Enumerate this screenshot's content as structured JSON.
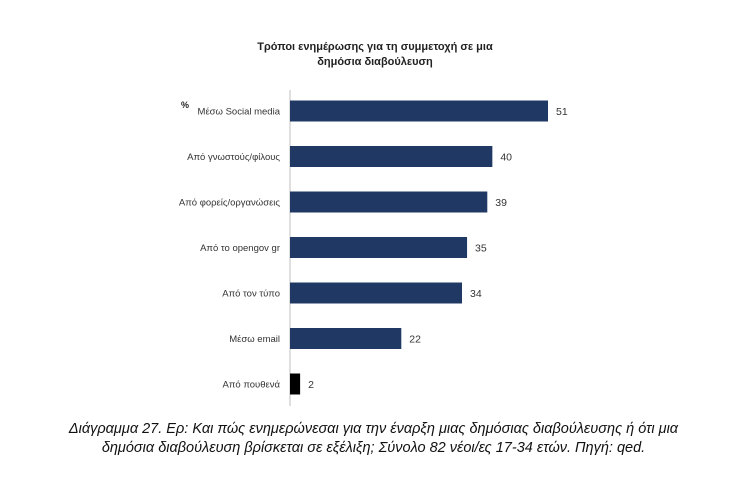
{
  "chart_data": {
    "type": "bar",
    "orientation": "horizontal",
    "title_lines": [
      "Τρόποι ενημέρωσης για τη συμμετοχή σε μια",
      "δημόσια διαβούλευση"
    ],
    "unit_label": "%",
    "categories": [
      "Μέσω Social media",
      "Από γνωστούς/φίλους",
      "Από φορείς/οργανώσεις",
      "Από το opengov gr",
      "Από τον τύπο",
      "Μέσω email",
      "Από πουθενά"
    ],
    "values": [
      51,
      40,
      39,
      35,
      34,
      22,
      2
    ],
    "colors": [
      "#1f3864",
      "#1f3864",
      "#1f3864",
      "#1f3864",
      "#1f3864",
      "#1f3864",
      "#000000"
    ],
    "xlim": [
      0,
      60
    ],
    "grid": false,
    "legend": "none"
  },
  "caption_lines": [
    "Διάγραμμα 27. Ερ: Και πώς ενημερώνεσαι για την έναρξη μιας δημόσιας διαβούλευσης ή ότι μια",
    "δημόσια διαβούλευση βρίσκεται σε εξέλιξη; Σύνολο 82 νέοι/ες 17-34 ετών. Πηγή: qed."
  ]
}
